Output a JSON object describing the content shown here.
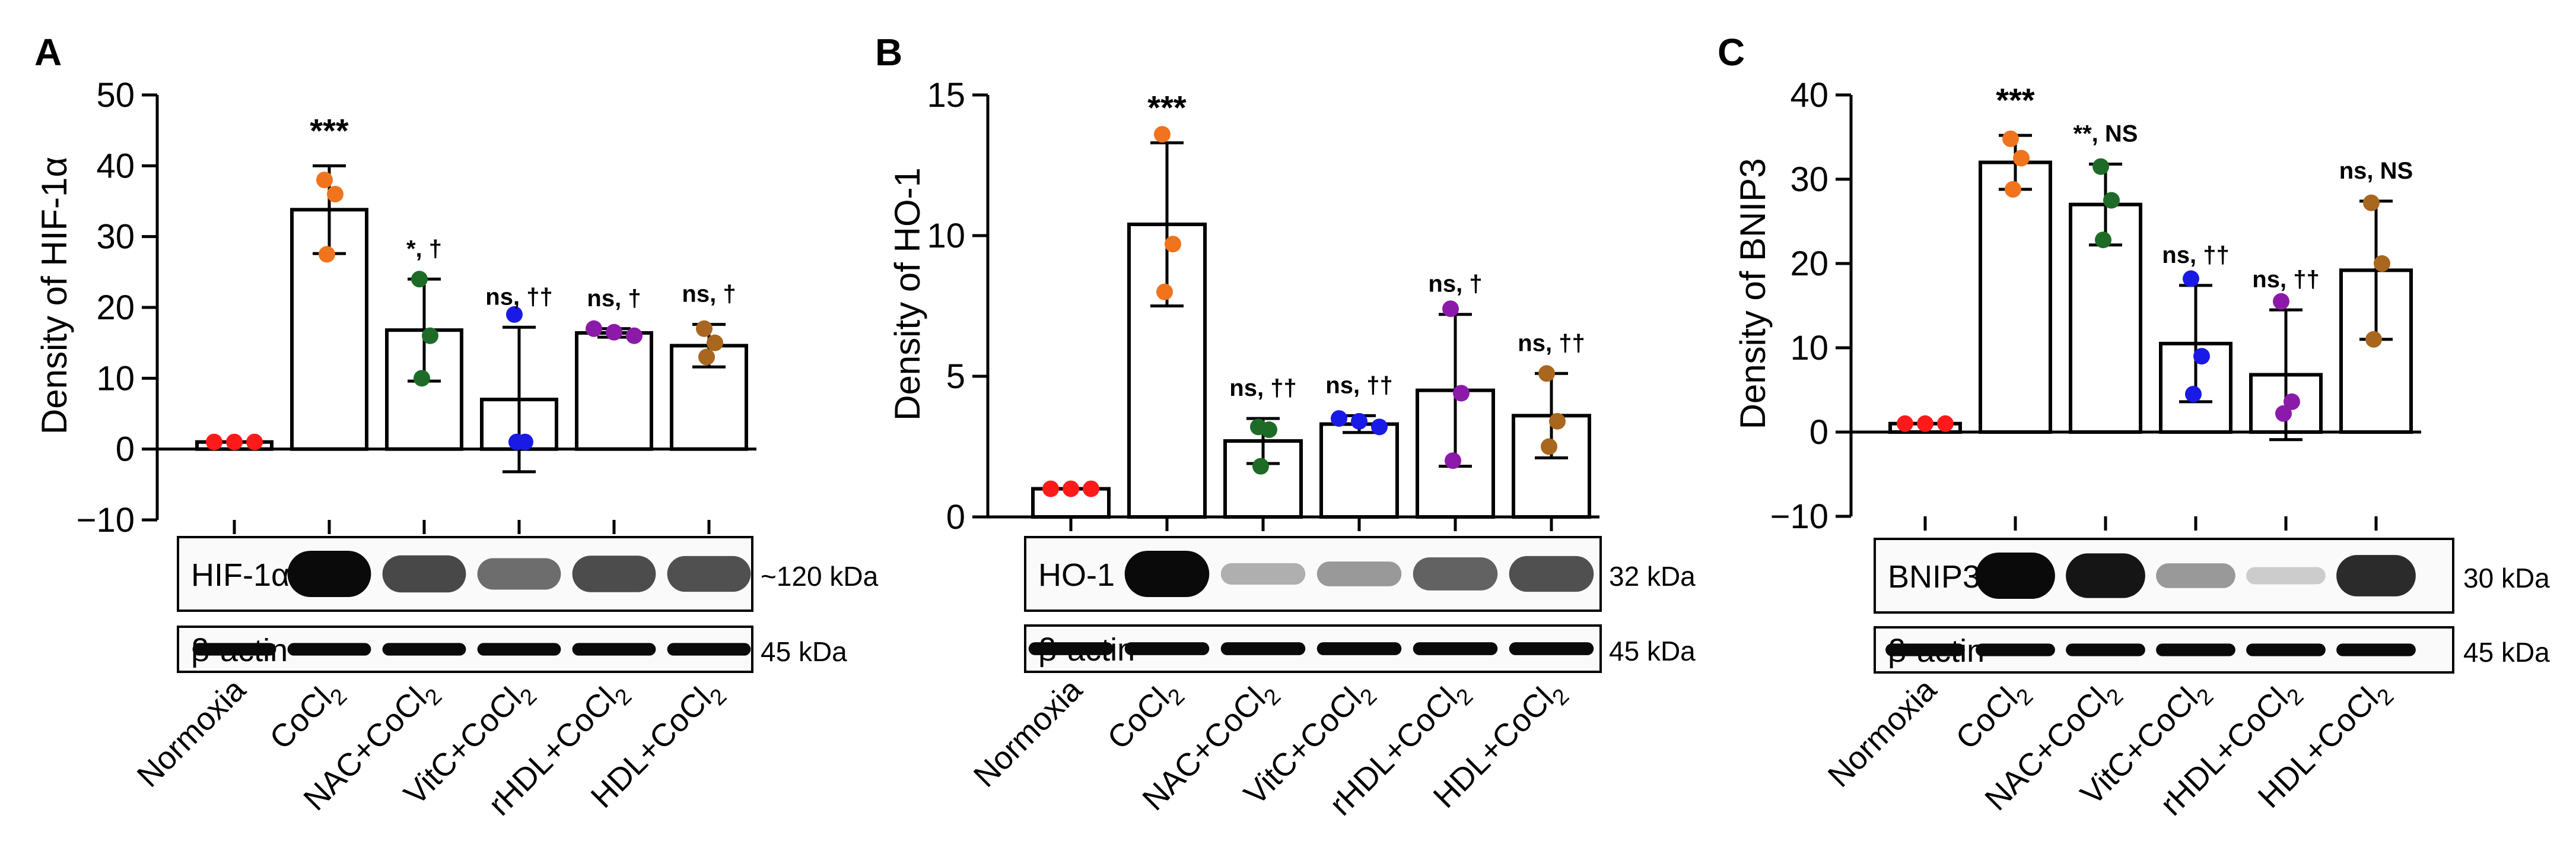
{
  "colors": {
    "Normoxia": "#ff1a1a",
    "CoCl2": "#f0731e",
    "NAC+CoCl2": "#1e6b28",
    "VitC+CoCl2": "#1a1ae6",
    "rHDL+CoCl2": "#8c1aa8",
    "HDL+CoCl2": "#a8661e",
    "axis": "#000000",
    "bar_fill": "#ffffff"
  },
  "x_categories": [
    "Normoxia",
    "CoCl2",
    "NAC+CoCl2",
    "VitC+CoCl2",
    "rHDL+CoCl2",
    "HDL+CoCl2"
  ],
  "chart_data": [
    {
      "panel": "A",
      "type": "bar",
      "title": "",
      "ylabel": "Density of HIF-1α",
      "ylim": [
        -10,
        50
      ],
      "yticks": [
        -10,
        0,
        10,
        20,
        30,
        40,
        50
      ],
      "tick_labels": [
        "−10",
        "0",
        "10",
        "20",
        "30",
        "40",
        "50"
      ],
      "categories": [
        "Normoxia",
        "CoCl2",
        "NAC+CoCl2",
        "VitC+CoCl2",
        "rHDL+CoCl2",
        "HDL+CoCl2"
      ],
      "means": [
        1,
        33.8,
        16.8,
        7,
        16.4,
        14.6
      ],
      "sd": [
        0,
        6.2,
        7.2,
        10.2,
        0.6,
        3
      ],
      "points": [
        [
          1,
          1,
          1
        ],
        [
          38,
          36,
          27.5
        ],
        [
          24,
          16,
          10
        ],
        [
          19,
          1,
          1
        ],
        [
          17,
          16.5,
          16
        ],
        [
          17,
          15,
          13
        ]
      ],
      "annotations": [
        "",
        "***",
        "*, †",
        "ns, ††",
        "ns, †",
        "ns, †"
      ],
      "blots": [
        {
          "label": "HIF-1α",
          "size": "~120 kDa",
          "intensity": [
            0,
            1,
            0.72,
            0.55,
            0.7,
            0.68
          ]
        },
        {
          "label": "β-actin",
          "size": "45 kDa",
          "intensity": [
            1,
            1,
            1,
            1,
            1,
            1
          ]
        }
      ]
    },
    {
      "panel": "B",
      "type": "bar",
      "title": "",
      "ylabel": "Density of HO-1",
      "ylim": [
        0,
        15
      ],
      "yticks": [
        0,
        5,
        10,
        15
      ],
      "tick_labels": [
        "0",
        "5",
        "10",
        "15"
      ],
      "categories": [
        "Normoxia",
        "CoCl2",
        "NAC+CoCl2",
        "VitC+CoCl2",
        "rHDL+CoCl2",
        "HDL+CoCl2"
      ],
      "means": [
        1,
        10.4,
        2.7,
        3.3,
        4.5,
        3.6
      ],
      "sd": [
        0,
        2.9,
        0.8,
        0.3,
        2.7,
        1.5
      ],
      "points": [
        [
          1,
          1,
          1
        ],
        [
          13.6,
          9.7,
          8
        ],
        [
          3.2,
          3.1,
          1.8
        ],
        [
          3.5,
          3.4,
          3.2
        ],
        [
          7.4,
          4.4,
          2
        ],
        [
          5.1,
          3.4,
          2.5
        ]
      ],
      "annotations": [
        "",
        "***",
        "ns, ††",
        "ns, ††",
        "ns, †",
        "ns, ††"
      ],
      "blots": [
        {
          "label": "HO-1",
          "size": "32 kDa",
          "intensity": [
            0,
            1,
            0.25,
            0.35,
            0.6,
            0.68
          ]
        },
        {
          "label": "β-actin",
          "size": "45 kDa",
          "intensity": [
            1,
            1,
            1,
            1,
            1,
            1
          ]
        }
      ]
    },
    {
      "panel": "C",
      "type": "bar",
      "title": "",
      "ylabel": "Density of BNIP3",
      "ylim": [
        -10,
        40
      ],
      "yticks": [
        -10,
        0,
        10,
        20,
        30,
        40
      ],
      "tick_labels": [
        "−10",
        "0",
        "10",
        "20",
        "30",
        "40"
      ],
      "categories": [
        "Normoxia",
        "CoCl2",
        "NAC+CoCl2",
        "VitC+CoCl2",
        "rHDL+CoCl2",
        "HDL+CoCl2"
      ],
      "means": [
        1,
        32,
        27,
        10.5,
        6.8,
        19.2
      ],
      "sd": [
        0,
        3.2,
        4.8,
        6.9,
        7.7,
        8.2
      ],
      "points": [
        [
          1,
          1,
          1
        ],
        [
          34.8,
          32.5,
          28.8
        ],
        [
          31.5,
          27.5,
          22.8
        ],
        [
          18.2,
          9,
          4.5
        ],
        [
          15.5,
          3.6,
          2.2
        ],
        [
          27.2,
          20,
          11
        ]
      ],
      "annotations": [
        "",
        "***",
        "**, NS",
        "ns, ††",
        "ns, ††",
        "ns, NS"
      ],
      "blots": [
        {
          "label": "BNIP3",
          "size": "30 kDa",
          "intensity": [
            0,
            1,
            0.95,
            0.35,
            0.12,
            0.85
          ]
        },
        {
          "label": "β-actin",
          "size": "45 kDa",
          "intensity": [
            1,
            1,
            1,
            1,
            1,
            1
          ]
        }
      ]
    }
  ]
}
